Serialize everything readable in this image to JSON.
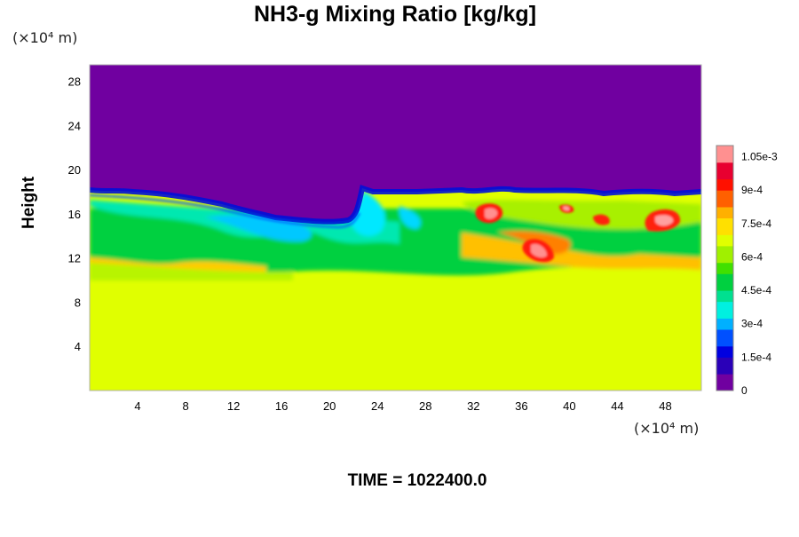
{
  "chart_data": {
    "type": "heatmap",
    "title": "NH3-g Mixing Ratio [kg/kg]",
    "ylabel": "Height",
    "xlabel": "",
    "x_unit_label": "(×10⁴ m)",
    "y_unit_label": "(×10⁴ m)",
    "x_ticks": [
      4,
      8,
      12,
      16,
      20,
      24,
      28,
      32,
      36,
      40,
      44,
      48
    ],
    "y_ticks": [
      4,
      8,
      12,
      16,
      20,
      24,
      28
    ],
    "xlim": [
      0,
      51
    ],
    "ylim": [
      0,
      29.5
    ],
    "colorbar": {
      "range": [
        0,
        0.0011
      ],
      "ticks": [
        {
          "value": 0,
          "label": "0"
        },
        {
          "value": 0.00015,
          "label": "1.5e-4"
        },
        {
          "value": 0.0003,
          "label": "3e-4"
        },
        {
          "value": 0.00045,
          "label": "4.5e-4"
        },
        {
          "value": 0.0006,
          "label": "6e-4"
        },
        {
          "value": 0.00075,
          "label": "7.5e-4"
        },
        {
          "value": 0.0009,
          "label": "9e-4"
        },
        {
          "value": 0.00105,
          "label": "1.05e-3"
        }
      ],
      "colors": [
        "#7000a0",
        "#2a00b8",
        "#0000e0",
        "#0050ff",
        "#00b0ff",
        "#00f0e0",
        "#00e090",
        "#00d040",
        "#40e000",
        "#a0f000",
        "#e0ff00",
        "#ffe000",
        "#ffb000",
        "#ff6000",
        "#ff1000",
        "#e80030",
        "#ff9090"
      ]
    },
    "field_description": {
      "upper_region_value": 0,
      "lower_region_value": 0.00078,
      "mixing_layer_top_approx": 18,
      "mixing_layer_bottom_approx": 11
    }
  },
  "footer": {
    "time_label": "TIME = 1022400.0"
  }
}
